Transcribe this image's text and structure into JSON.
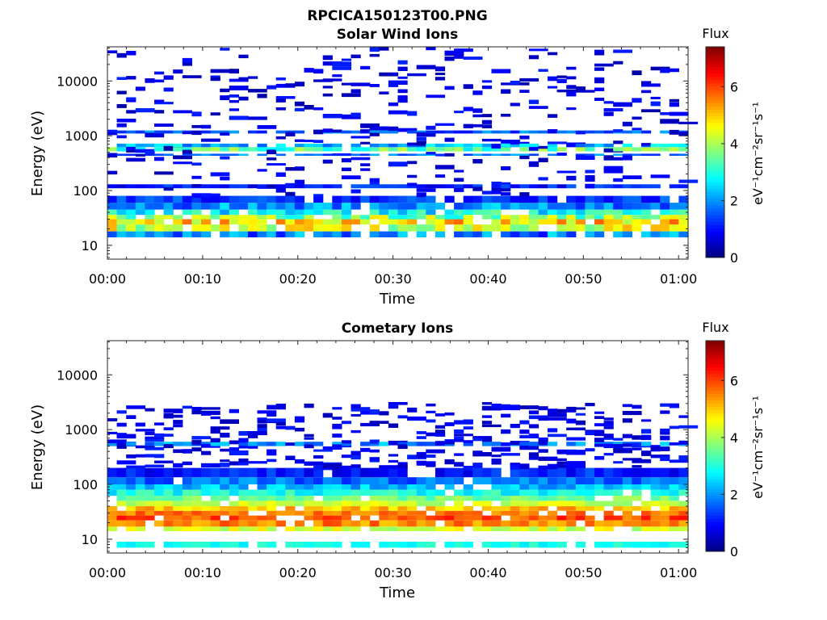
{
  "figure": {
    "title": "RPCICA150123T00.PNG"
  },
  "chart_data": [
    {
      "type": "heatmap",
      "title": "Solar Wind Ions",
      "xlabel": "Time",
      "ylabel": "Energy (eV)",
      "xlim_minutes": [
        0,
        61
      ],
      "x_ticks": [
        "00:00",
        "00:10",
        "00:20",
        "00:30",
        "00:40",
        "00:50",
        "01:00"
      ],
      "yscale": "log",
      "ylim": [
        5.6,
        42000
      ],
      "y_ticks": [
        10,
        100,
        1000,
        10000
      ],
      "y_ticklabels": [
        "10",
        "100",
        "1000",
        "10000"
      ],
      "colorbar": {
        "title": "Flux",
        "label": "eV⁻¹cm⁻²sr⁻¹s⁻¹",
        "range": [
          0,
          7.4
        ],
        "ticks": [
          0,
          2,
          4,
          6
        ],
        "ticklabels": [
          "0",
          "2",
          "4",
          "6"
        ],
        "colormap": "jet"
      },
      "bands": [
        {
          "energy_range": [
            14,
            18
          ],
          "flux_range": [
            1.0,
            2.6
          ]
        },
        {
          "energy_range": [
            18,
            24
          ],
          "flux_range": [
            3.4,
            5.2
          ]
        },
        {
          "energy_range": [
            24,
            30
          ],
          "flux_range": [
            4.0,
            5.8
          ]
        },
        {
          "energy_range": [
            30,
            36
          ],
          "flux_range": [
            2.8,
            4.8
          ]
        },
        {
          "energy_range": [
            36,
            45
          ],
          "flux_range": [
            2.0,
            3.6
          ]
        },
        {
          "energy_range": [
            45,
            60
          ],
          "flux_range": [
            1.2,
            2.6
          ]
        },
        {
          "energy_range": [
            60,
            80
          ],
          "flux_range": [
            0.8,
            1.8
          ]
        },
        {
          "energy_range": [
            110,
            130
          ],
          "flux_range": [
            0.6,
            1.6
          ]
        },
        {
          "energy_range": [
            430,
            470
          ],
          "flux_range": [
            1.2,
            2.4
          ]
        },
        {
          "energy_range": [
            520,
            620
          ],
          "flux_range": [
            2.6,
            4.2
          ]
        },
        {
          "energy_range": [
            620,
            720
          ],
          "flux_range": [
            1.6,
            3.0
          ]
        },
        {
          "energy_range": [
            1100,
            1250
          ],
          "flux_range": [
            1.0,
            2.2
          ]
        }
      ],
      "sparse_counts": {
        "energy_range": [
          80,
          40000
        ],
        "flux_range": [
          0.3,
          1.2
        ]
      }
    },
    {
      "type": "heatmap",
      "title": "Cometary Ions",
      "xlabel": "Time",
      "ylabel": "Energy (eV)",
      "xlim_minutes": [
        0,
        61
      ],
      "x_ticks": [
        "00:00",
        "00:10",
        "00:20",
        "00:30",
        "00:40",
        "00:50",
        "01:00"
      ],
      "yscale": "log",
      "ylim": [
        5.6,
        42000
      ],
      "y_ticks": [
        10,
        100,
        1000,
        10000
      ],
      "y_ticklabels": [
        "10",
        "100",
        "1000",
        "10000"
      ],
      "colorbar": {
        "title": "Flux",
        "label": "eV⁻¹cm⁻²sr⁻¹s⁻¹",
        "range": [
          0,
          7.4
        ],
        "ticks": [
          0,
          2,
          4,
          6
        ],
        "ticklabels": [
          "0",
          "2",
          "4",
          "6"
        ],
        "colormap": "jet"
      },
      "bands": [
        {
          "energy_range": [
            7,
            9
          ],
          "flux_range": [
            2.6,
            3.2
          ]
        },
        {
          "energy_range": [
            14,
            17
          ],
          "flux_range": [
            3.8,
            4.8
          ]
        },
        {
          "energy_range": [
            17,
            22
          ],
          "flux_range": [
            5.0,
            6.0
          ]
        },
        {
          "energy_range": [
            22,
            27
          ],
          "flux_range": [
            5.4,
            6.4
          ]
        },
        {
          "energy_range": [
            27,
            33
          ],
          "flux_range": [
            5.2,
            6.0
          ]
        },
        {
          "energy_range": [
            33,
            40
          ],
          "flux_range": [
            4.6,
            5.6
          ]
        },
        {
          "energy_range": [
            40,
            50
          ],
          "flux_range": [
            3.8,
            4.6
          ]
        },
        {
          "energy_range": [
            50,
            62
          ],
          "flux_range": [
            3.2,
            4.0
          ]
        },
        {
          "energy_range": [
            62,
            80
          ],
          "flux_range": [
            2.4,
            3.4
          ]
        },
        {
          "energy_range": [
            80,
            100
          ],
          "flux_range": [
            1.8,
            2.8
          ]
        },
        {
          "energy_range": [
            100,
            135
          ],
          "flux_range": [
            1.2,
            2.2
          ]
        },
        {
          "energy_range": [
            135,
            200
          ],
          "flux_range": [
            0.6,
            1.6
          ]
        },
        {
          "energy_range": [
            500,
            600
          ],
          "flux_range": [
            1.4,
            2.6
          ]
        }
      ],
      "sparse_counts": {
        "energy_range": [
          200,
          3000
        ],
        "flux_range": [
          0.4,
          1.2
        ]
      }
    }
  ]
}
